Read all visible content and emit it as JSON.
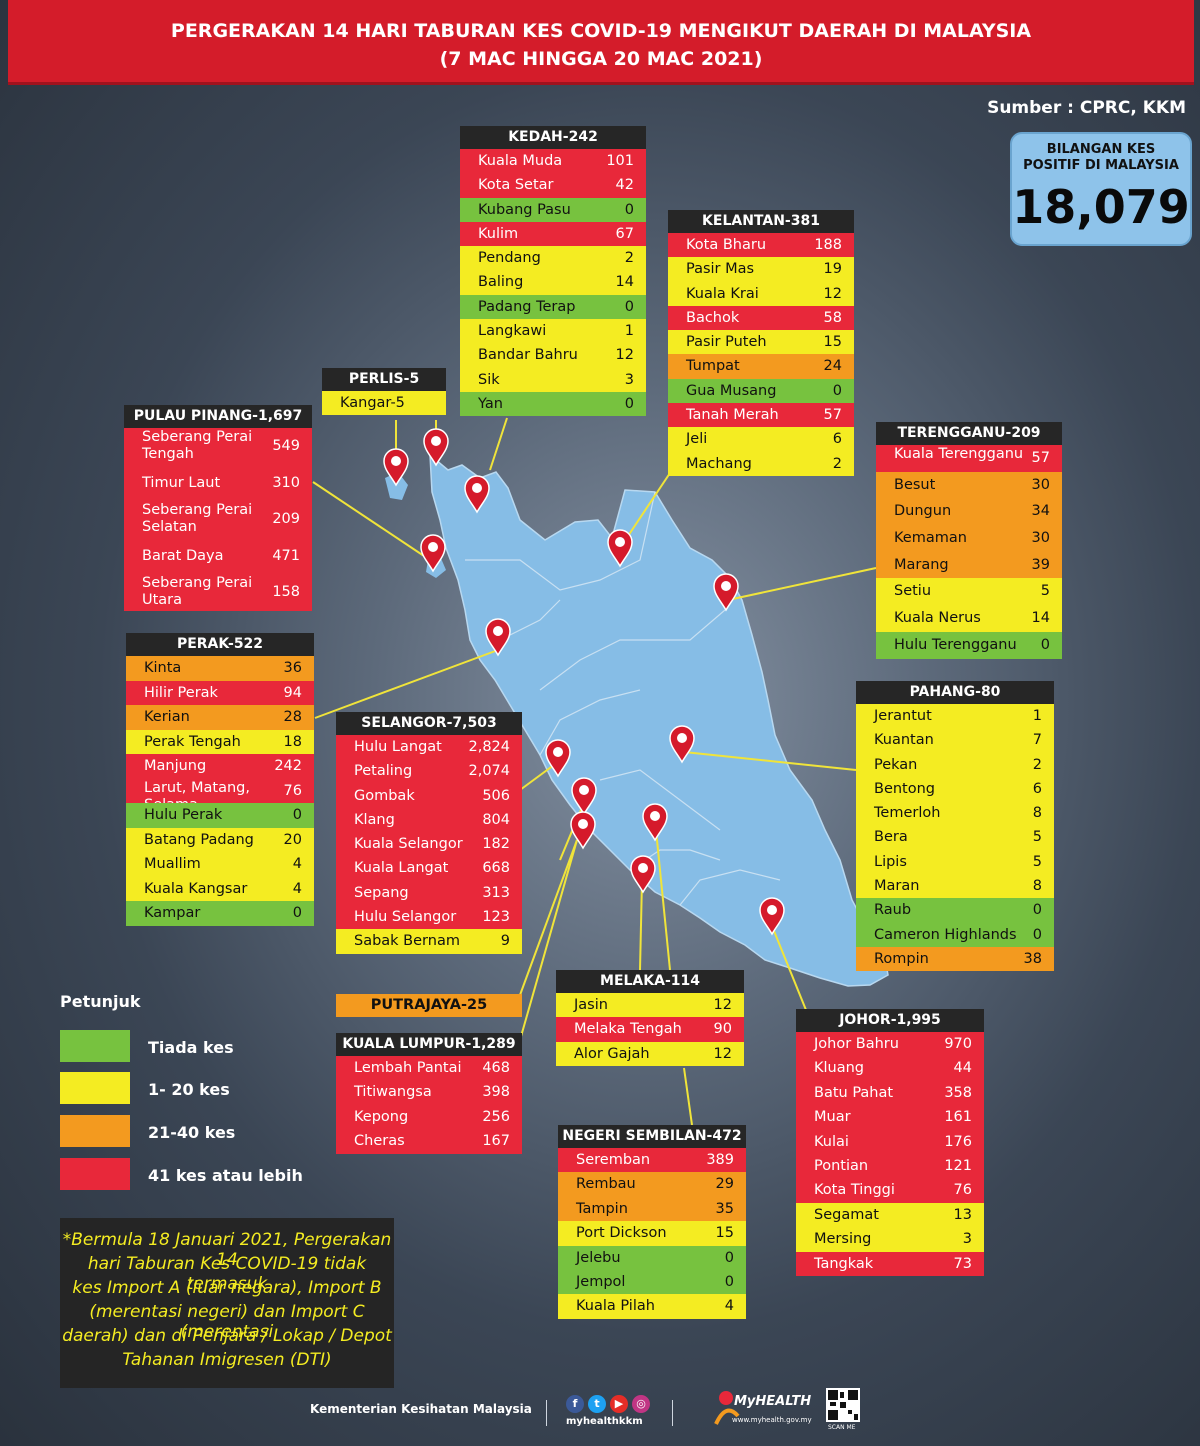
{
  "title_line1": "PERGERAKAN 14 HARI TABURAN KES COVID-19 MENGIKUT DAERAH DI MALAYSIA",
  "title_line2": "(7 MAC HINGGA 20 MAC 2021)",
  "source": "Sumber : CPRC, KKM",
  "total": {
    "label1": "BILANGAN KES",
    "label2": "POSITIF DI MALAYSIA",
    "value": "18,079"
  },
  "colors": {
    "red": "#e8283a",
    "yellow": "#f4ec22",
    "orange": "#f39a1f",
    "green": "#77c23f",
    "map": "#86bde6",
    "pin": "#d51a2b",
    "leader": "#f0e43a"
  },
  "states": {
    "kedah": {
      "title": "KEDAH-242",
      "rows": [
        {
          "name": "Kuala Muda",
          "count": "101",
          "color": "red"
        },
        {
          "name": "Kota Setar",
          "count": "42",
          "color": "red"
        },
        {
          "name": "Kubang Pasu",
          "count": "0",
          "color": "green"
        },
        {
          "name": "Kulim",
          "count": "67",
          "color": "red"
        },
        {
          "name": "Pendang",
          "count": "2",
          "color": "yellow"
        },
        {
          "name": "Baling",
          "count": "14",
          "color": "yellow"
        },
        {
          "name": "Padang Terap",
          "count": "0",
          "color": "green"
        },
        {
          "name": "Langkawi",
          "count": "1",
          "color": "yellow"
        },
        {
          "name": "Bandar Bahru",
          "count": "12",
          "color": "yellow"
        },
        {
          "name": "Sik",
          "count": "3",
          "color": "yellow"
        },
        {
          "name": "Yan",
          "count": "0",
          "color": "green"
        }
      ]
    },
    "kelantan": {
      "title": "KELANTAN-381",
      "rows": [
        {
          "name": "Kota Bharu",
          "count": "188",
          "color": "red"
        },
        {
          "name": "Pasir Mas",
          "count": "19",
          "color": "yellow"
        },
        {
          "name": "Kuala Krai",
          "count": "12",
          "color": "yellow"
        },
        {
          "name": "Bachok",
          "count": "58",
          "color": "red"
        },
        {
          "name": "Pasir Puteh",
          "count": "15",
          "color": "yellow"
        },
        {
          "name": "Tumpat",
          "count": "24",
          "color": "orange"
        },
        {
          "name": "Gua Musang",
          "count": "0",
          "color": "green"
        },
        {
          "name": "Tanah Merah",
          "count": "57",
          "color": "red"
        },
        {
          "name": "Jeli",
          "count": "6",
          "color": "yellow"
        },
        {
          "name": "Machang",
          "count": "2",
          "color": "yellow"
        }
      ]
    },
    "perlis": {
      "title": "PERLIS-5",
      "rows": [
        {
          "name": "Kangar-5",
          "count": "",
          "color": "yellow"
        }
      ]
    },
    "pinang": {
      "title": "PULAU PINANG-1,697",
      "rows": [
        {
          "name": "Seberang Perai Tengah",
          "count": "549",
          "color": "red"
        },
        {
          "name": "Timur Laut",
          "count": "310",
          "color": "red"
        },
        {
          "name": "Seberang Perai Selatan",
          "count": "209",
          "color": "red"
        },
        {
          "name": "Barat Daya",
          "count": "471",
          "color": "red"
        },
        {
          "name": "Seberang Perai Utara",
          "count": "158",
          "color": "red"
        }
      ]
    },
    "terengganu": {
      "title": "TERENGGANU-209",
      "rows": [
        {
          "name": "Kuala Terengganu",
          "count": "57",
          "color": "red"
        },
        {
          "name": "Besut",
          "count": "30",
          "color": "orange"
        },
        {
          "name": "Dungun",
          "count": "34",
          "color": "orange"
        },
        {
          "name": "Kemaman",
          "count": "30",
          "color": "orange"
        },
        {
          "name": "Marang",
          "count": "39",
          "color": "orange"
        },
        {
          "name": "Setiu",
          "count": "5",
          "color": "yellow"
        },
        {
          "name": "Kuala Nerus",
          "count": "14",
          "color": "yellow"
        },
        {
          "name": "Hulu Terengganu",
          "count": "0",
          "color": "green"
        }
      ]
    },
    "perak": {
      "title": "PERAK-522",
      "rows": [
        {
          "name": "Kinta",
          "count": "36",
          "color": "orange"
        },
        {
          "name": "Hilir Perak",
          "count": "94",
          "color": "red"
        },
        {
          "name": "Kerian",
          "count": "28",
          "color": "orange"
        },
        {
          "name": "Perak Tengah",
          "count": "18",
          "color": "yellow"
        },
        {
          "name": "Manjung",
          "count": "242",
          "color": "red"
        },
        {
          "name": "Larut, Matang, Selama",
          "count": "76",
          "color": "red"
        },
        {
          "name": "Hulu Perak",
          "count": "0",
          "color": "green"
        },
        {
          "name": "Batang Padang",
          "count": "20",
          "color": "yellow"
        },
        {
          "name": "Muallim",
          "count": "4",
          "color": "yellow"
        },
        {
          "name": "Kuala Kangsar",
          "count": "4",
          "color": "yellow"
        },
        {
          "name": "Kampar",
          "count": "0",
          "color": "green"
        }
      ]
    },
    "selangor": {
      "title": "SELANGOR-7,503",
      "rows": [
        {
          "name": "Hulu Langat",
          "count": "2,824",
          "color": "red"
        },
        {
          "name": "Petaling",
          "count": "2,074",
          "color": "red"
        },
        {
          "name": "Gombak",
          "count": "506",
          "color": "red"
        },
        {
          "name": "Klang",
          "count": "804",
          "color": "red"
        },
        {
          "name": "Kuala Selangor",
          "count": "182",
          "color": "red"
        },
        {
          "name": "Kuala Langat",
          "count": "668",
          "color": "red"
        },
        {
          "name": "Sepang",
          "count": "313",
          "color": "red"
        },
        {
          "name": "Hulu Selangor",
          "count": "123",
          "color": "red"
        },
        {
          "name": "Sabak Bernam",
          "count": "9",
          "color": "yellow"
        }
      ]
    },
    "pahang": {
      "title": "PAHANG-80",
      "rows": [
        {
          "name": "Jerantut",
          "count": "1",
          "color": "yellow"
        },
        {
          "name": "Kuantan",
          "count": "7",
          "color": "yellow"
        },
        {
          "name": "Pekan",
          "count": "2",
          "color": "yellow"
        },
        {
          "name": "Bentong",
          "count": "6",
          "color": "yellow"
        },
        {
          "name": "Temerloh",
          "count": "8",
          "color": "yellow"
        },
        {
          "name": "Bera",
          "count": "5",
          "color": "yellow"
        },
        {
          "name": "Lipis",
          "count": "5",
          "color": "yellow"
        },
        {
          "name": "Maran",
          "count": "8",
          "color": "yellow"
        },
        {
          "name": "Raub",
          "count": "0",
          "color": "green"
        },
        {
          "name": "Cameron Highlands",
          "count": "0",
          "color": "green"
        },
        {
          "name": "Rompin",
          "count": "38",
          "color": "orange"
        }
      ]
    },
    "melaka": {
      "title": "MELAKA-114",
      "rows": [
        {
          "name": "Jasin",
          "count": "12",
          "color": "yellow"
        },
        {
          "name": "Melaka Tengah",
          "count": "90",
          "color": "red"
        },
        {
          "name": "Alor Gajah",
          "count": "12",
          "color": "yellow"
        }
      ]
    },
    "kl": {
      "title": "KUALA LUMPUR-1,289",
      "rows": [
        {
          "name": "Lembah Pantai",
          "count": "468",
          "color": "red"
        },
        {
          "name": "Titiwangsa",
          "count": "398",
          "color": "red"
        },
        {
          "name": "Kepong",
          "count": "256",
          "color": "red"
        },
        {
          "name": "Cheras",
          "count": "167",
          "color": "red"
        }
      ]
    },
    "johor": {
      "title": "JOHOR-1,995",
      "rows": [
        {
          "name": "Johor Bahru",
          "count": "970",
          "color": "red"
        },
        {
          "name": "Kluang",
          "count": "44",
          "color": "red"
        },
        {
          "name": "Batu Pahat",
          "count": "358",
          "color": "red"
        },
        {
          "name": "Muar",
          "count": "161",
          "color": "red"
        },
        {
          "name": "Kulai",
          "count": "176",
          "color": "red"
        },
        {
          "name": "Pontian",
          "count": "121",
          "color": "red"
        },
        {
          "name": "Kota Tinggi",
          "count": "76",
          "color": "red"
        },
        {
          "name": "Segamat",
          "count": "13",
          "color": "yellow"
        },
        {
          "name": "Mersing",
          "count": "3",
          "color": "yellow"
        },
        {
          "name": "Tangkak",
          "count": "73",
          "color": "red"
        }
      ]
    },
    "ns": {
      "title": "NEGERI SEMBILAN-472",
      "rows": [
        {
          "name": "Seremban",
          "count": "389",
          "color": "red"
        },
        {
          "name": "Rembau",
          "count": "29",
          "color": "orange"
        },
        {
          "name": "Tampin",
          "count": "35",
          "color": "orange"
        },
        {
          "name": "Port Dickson",
          "count": "15",
          "color": "yellow"
        },
        {
          "name": "Jelebu",
          "count": "0",
          "color": "green"
        },
        {
          "name": "Jempol",
          "count": "0",
          "color": "green"
        },
        {
          "name": "Kuala Pilah",
          "count": "4",
          "color": "yellow"
        }
      ]
    }
  },
  "putrajaya": "PUTRAJAYA-25",
  "legend": {
    "title": "Petunjuk",
    "items": [
      {
        "label": "Tiada kes",
        "color": "green"
      },
      {
        "label": "1- 20 kes",
        "color": "yellow"
      },
      {
        "label": "21-40 kes",
        "color": "orange"
      },
      {
        "label": "41 kes atau lebih",
        "color": "red"
      }
    ]
  },
  "note": {
    "lines": [
      "*Bermula 18 Januari 2021, Pergerakan 14",
      "hari Taburan Kes COVID-19 tidak termasuk",
      "kes Import A (luar negara), Import B",
      "(merentasi negeri) dan Import C (merentasi",
      "daerah) dan di Penjara / Lokap / Depot",
      "Tahanan Imigresen (DTI)"
    ]
  },
  "footer": {
    "ministry": "Kementerian Kesihatan Malaysia",
    "handle": "myhealthkkm",
    "brand": "MyHEALTH",
    "url": "www.myhealth.gov.my",
    "scan": "SCAN ME"
  }
}
